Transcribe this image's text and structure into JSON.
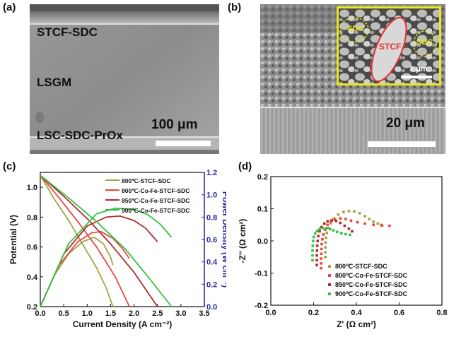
{
  "panels": {
    "a": {
      "label": "(a)",
      "layer_top": "STCF-SDC",
      "layer_mid": "LSGM",
      "layer_bottom": "LSC-SDC-PrOx",
      "scale": "100 μm"
    },
    "b": {
      "label": "(b)",
      "scale": "20 μm",
      "inset": {
        "left": "SDC",
        "center": "STCF",
        "right": "SDC",
        "scale": "1 μm"
      }
    },
    "c": {
      "label": "(c)"
    },
    "d": {
      "label": "(d)"
    }
  },
  "colors": {
    "s800_stcf": "#a3a340",
    "s800_cofe": "#ee4444",
    "s850_cofe": "#b02a2a",
    "s900_cofe": "#33c245",
    "inset_border": "#e8e820",
    "inset_ellipse": "#e33030"
  },
  "chart_data": [
    {
      "type": "line",
      "xlabel": "Current Density (A cm⁻²)",
      "ylabel": "Potential (V)",
      "y2label": "Power Density (W cm⁻²)",
      "xlim": [
        0,
        3.5
      ],
      "ylim": [
        0.2,
        1.1
      ],
      "y2lim": [
        0,
        1.2
      ],
      "xticks": [
        "0.0",
        "0.5",
        "1.0",
        "1.5",
        "2.0",
        "2.5",
        "3.0",
        "3.5"
      ],
      "yticks": [
        "0.2",
        "0.4",
        "0.6",
        "0.8",
        "1.0"
      ],
      "y2ticks": [
        "0.0",
        "0.2",
        "0.4",
        "0.6",
        "0.8",
        "1.0",
        "1.2"
      ],
      "legend_position": "top-right",
      "series": [
        {
          "name": "800℃-STCF-SDC",
          "color_key": "s800_stcf",
          "iv": [
            [
              0,
              1.08
            ],
            [
              0.3,
              0.92
            ],
            [
              0.6,
              0.78
            ],
            [
              0.9,
              0.62
            ],
            [
              1.2,
              0.46
            ],
            [
              1.4,
              0.33
            ],
            [
              1.55,
              0.2
            ]
          ],
          "power": [
            [
              0,
              0
            ],
            [
              0.3,
              0.28
            ],
            [
              0.6,
              0.47
            ],
            [
              0.9,
              0.58
            ],
            [
              1.15,
              0.62
            ],
            [
              1.35,
              0.56
            ],
            [
              1.5,
              0.44
            ],
            [
              1.55,
              0.37
            ]
          ]
        },
        {
          "name": "800℃-Co-Fe-STCF-SDC",
          "color_key": "s800_cofe",
          "iv": [
            [
              0,
              1.08
            ],
            [
              0.4,
              0.93
            ],
            [
              0.8,
              0.77
            ],
            [
              1.2,
              0.6
            ],
            [
              1.6,
              0.4
            ],
            [
              1.9,
              0.2
            ]
          ],
          "power": [
            [
              0,
              0
            ],
            [
              0.4,
              0.37
            ],
            [
              0.8,
              0.58
            ],
            [
              1.1,
              0.66
            ],
            [
              1.3,
              0.67
            ],
            [
              1.55,
              0.61
            ],
            [
              1.75,
              0.52
            ],
            [
              1.9,
              0.43
            ]
          ]
        },
        {
          "name": "850℃-Co-Fe-STCF-SDC",
          "color_key": "s850_cofe",
          "iv": [
            [
              0,
              1.08
            ],
            [
              0.5,
              0.94
            ],
            [
              1.0,
              0.79
            ],
            [
              1.5,
              0.62
            ],
            [
              2.0,
              0.43
            ],
            [
              2.5,
              0.2
            ]
          ],
          "power": [
            [
              0,
              0
            ],
            [
              0.5,
              0.47
            ],
            [
              1.0,
              0.72
            ],
            [
              1.4,
              0.8
            ],
            [
              1.7,
              0.81
            ],
            [
              2.0,
              0.77
            ],
            [
              2.25,
              0.7
            ],
            [
              2.5,
              0.58
            ]
          ]
        },
        {
          "name": "900℃-Co-Fe-STCF-SDC",
          "color_key": "s900_cofe",
          "iv": [
            [
              0,
              1.08
            ],
            [
              0.6,
              0.93
            ],
            [
              1.2,
              0.77
            ],
            [
              1.8,
              0.59
            ],
            [
              2.3,
              0.4
            ],
            [
              2.8,
              0.2
            ]
          ],
          "power": [
            [
              0,
              0
            ],
            [
              0.6,
              0.56
            ],
            [
              1.2,
              0.83
            ],
            [
              1.6,
              0.88
            ],
            [
              2.0,
              0.87
            ],
            [
              2.3,
              0.82
            ],
            [
              2.55,
              0.74
            ],
            [
              2.8,
              0.62
            ]
          ]
        }
      ]
    },
    {
      "type": "scatter",
      "xlabel": "Z' (Ω cm²)",
      "ylabel": "-Z'' (Ω cm²)",
      "xlim": [
        0,
        0.8
      ],
      "ylim": [
        -0.2,
        0.2
      ],
      "xticks": [
        "0.0",
        "0.2",
        "0.4",
        "0.6",
        "0.8"
      ],
      "yticks": [
        "-0.2",
        "-0.1",
        "0.0",
        "0.1",
        "0.2"
      ],
      "legend_position": "bottom-right",
      "series": [
        {
          "name": "800℃-STCF-SDC",
          "color_key": "s800_stcf",
          "points": [
            [
              0.255,
              -0.05
            ],
            [
              0.255,
              -0.035
            ],
            [
              0.255,
              -0.02
            ],
            [
              0.256,
              -0.005
            ],
            [
              0.258,
              0.01
            ],
            [
              0.262,
              0.025
            ],
            [
              0.27,
              0.04
            ],
            [
              0.28,
              0.055
            ],
            [
              0.295,
              0.07
            ],
            [
              0.315,
              0.082
            ],
            [
              0.34,
              0.09
            ],
            [
              0.365,
              0.093
            ],
            [
              0.39,
              0.092
            ],
            [
              0.415,
              0.086
            ],
            [
              0.44,
              0.077
            ],
            [
              0.46,
              0.068
            ],
            [
              0.48,
              0.06
            ],
            [
              0.5,
              0.054
            ],
            [
              0.515,
              0.05
            ]
          ]
        },
        {
          "name": "800℃-Co-Fe-STCF-SDC",
          "color_key": "s800_cofe",
          "points": [
            [
              0.235,
              -0.085
            ],
            [
              0.235,
              -0.07
            ],
            [
              0.235,
              -0.055
            ],
            [
              0.236,
              -0.04
            ],
            [
              0.237,
              -0.025
            ],
            [
              0.238,
              -0.01
            ],
            [
              0.241,
              0.005
            ],
            [
              0.246,
              0.02
            ],
            [
              0.254,
              0.035
            ],
            [
              0.265,
              0.05
            ],
            [
              0.28,
              0.06
            ],
            [
              0.3,
              0.067
            ],
            [
              0.325,
              0.07
            ],
            [
              0.35,
              0.068
            ],
            [
              0.375,
              0.063
            ],
            [
              0.405,
              0.058
            ],
            [
              0.44,
              0.054
            ],
            [
              0.48,
              0.05
            ],
            [
              0.52,
              0.048
            ],
            [
              0.555,
              0.047
            ]
          ]
        },
        {
          "name": "850℃-Co-Fe-STCF-SDC",
          "color_key": "s850_cofe",
          "points": [
            [
              0.215,
              -0.075
            ],
            [
              0.215,
              -0.06
            ],
            [
              0.215,
              -0.045
            ],
            [
              0.216,
              -0.03
            ],
            [
              0.217,
              -0.015
            ],
            [
              0.219,
              0.0
            ],
            [
              0.222,
              0.015
            ],
            [
              0.228,
              0.03
            ],
            [
              0.237,
              0.043
            ],
            [
              0.25,
              0.054
            ],
            [
              0.265,
              0.061
            ],
            [
              0.285,
              0.064
            ],
            [
              0.305,
              0.062
            ],
            [
              0.325,
              0.056
            ],
            [
              0.345,
              0.047
            ],
            [
              0.365,
              0.038
            ],
            [
              0.38,
              0.03
            ]
          ]
        },
        {
          "name": "900℃-Co-Fe-STCF-SDC",
          "color_key": "s900_cofe",
          "points": [
            [
              0.195,
              -0.06
            ],
            [
              0.195,
              -0.045
            ],
            [
              0.195,
              -0.03
            ],
            [
              0.196,
              -0.015
            ],
            [
              0.198,
              0.0
            ],
            [
              0.201,
              0.012
            ],
            [
              0.207,
              0.023
            ],
            [
              0.216,
              0.031
            ],
            [
              0.228,
              0.037
            ],
            [
              0.243,
              0.04
            ],
            [
              0.26,
              0.04
            ],
            [
              0.277,
              0.037
            ],
            [
              0.293,
              0.033
            ],
            [
              0.31,
              0.028
            ],
            [
              0.33,
              0.024
            ],
            [
              0.35,
              0.021
            ],
            [
              0.37,
              0.019
            ]
          ]
        }
      ]
    }
  ]
}
